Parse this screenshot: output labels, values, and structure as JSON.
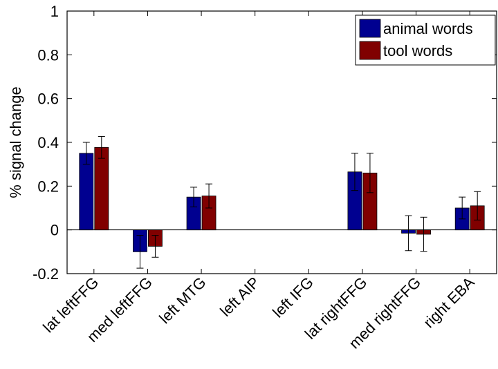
{
  "chart_data": {
    "type": "bar",
    "title": "",
    "xlabel": "",
    "ylabel": "% signal change",
    "ylim": [
      -0.2,
      1
    ],
    "yticks": [
      "-0.2",
      "0",
      "0.2",
      "0.4",
      "0.6",
      "0.8",
      "1"
    ],
    "categories": [
      "lat leftFFG",
      "med leftFFG",
      "left MTG",
      "left AIP",
      "left IFG",
      "lat rightFFG",
      "med rightFFG",
      "right EBA"
    ],
    "series": [
      {
        "name": "animal words",
        "color": "#000090",
        "values": [
          0.35,
          -0.1,
          0.15,
          0,
          0,
          0.265,
          -0.015,
          0.1
        ],
        "error": [
          0.05,
          0.075,
          0.045,
          0,
          0,
          0.085,
          0.08,
          0.05
        ]
      },
      {
        "name": "tool words",
        "color": "#800000",
        "values": [
          0.377,
          -0.075,
          0.155,
          0,
          0,
          0.26,
          -0.02,
          0.11
        ],
        "error": [
          0.05,
          0.05,
          0.055,
          0,
          0,
          0.09,
          0.078,
          0.065
        ]
      }
    ],
    "grid": false,
    "legend_position": "top-right"
  }
}
